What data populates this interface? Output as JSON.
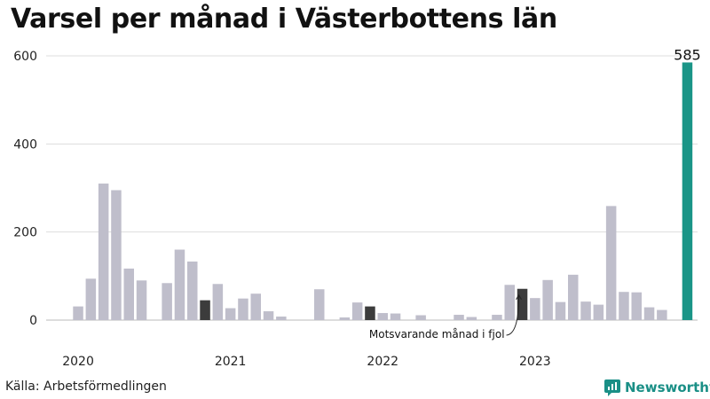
{
  "title": "Varsel per månad i Västerbottens län",
  "source": "Källa: Arbetsförmedlingen",
  "brand": {
    "name": "Newsworthy",
    "icon": "newsworthy-logo-icon",
    "color": "#1a8f86"
  },
  "colors": {
    "default": "#bfbecb",
    "comparison": "#3c3c3c",
    "highlight": "#1a9587",
    "grid": "#dddddd"
  },
  "chart_data": {
    "type": "bar",
    "title": "Varsel per månad i Västerbottens län",
    "xlabel": "",
    "ylabel": "",
    "ylim": [
      0,
      600
    ],
    "yticks": [
      0,
      200,
      400,
      600
    ],
    "grid": true,
    "x_start": "2020-01",
    "year_labels": [
      {
        "label": "2020",
        "index": 1
      },
      {
        "label": "2021",
        "index": 13
      },
      {
        "label": "2022",
        "index": 25
      },
      {
        "label": "2023",
        "index": 37
      }
    ],
    "values": [
      0,
      31,
      94,
      310,
      295,
      117,
      90,
      0,
      84,
      160,
      133,
      45,
      82,
      27,
      49,
      60,
      20,
      8,
      0,
      0,
      70,
      0,
      6,
      40,
      31,
      16,
      15,
      0,
      11,
      0,
      0,
      12,
      7,
      0,
      12,
      80,
      71,
      50,
      91,
      41,
      103,
      42,
      35,
      259,
      64,
      63,
      29,
      23,
      0,
      585
    ],
    "comparison_indices": [
      11,
      24,
      36
    ],
    "highlight_index": 49,
    "data_labels": [
      {
        "index": 49,
        "text": "585"
      }
    ],
    "annotation": {
      "text": "Motsvarande månad i fjol",
      "index": 36
    }
  }
}
